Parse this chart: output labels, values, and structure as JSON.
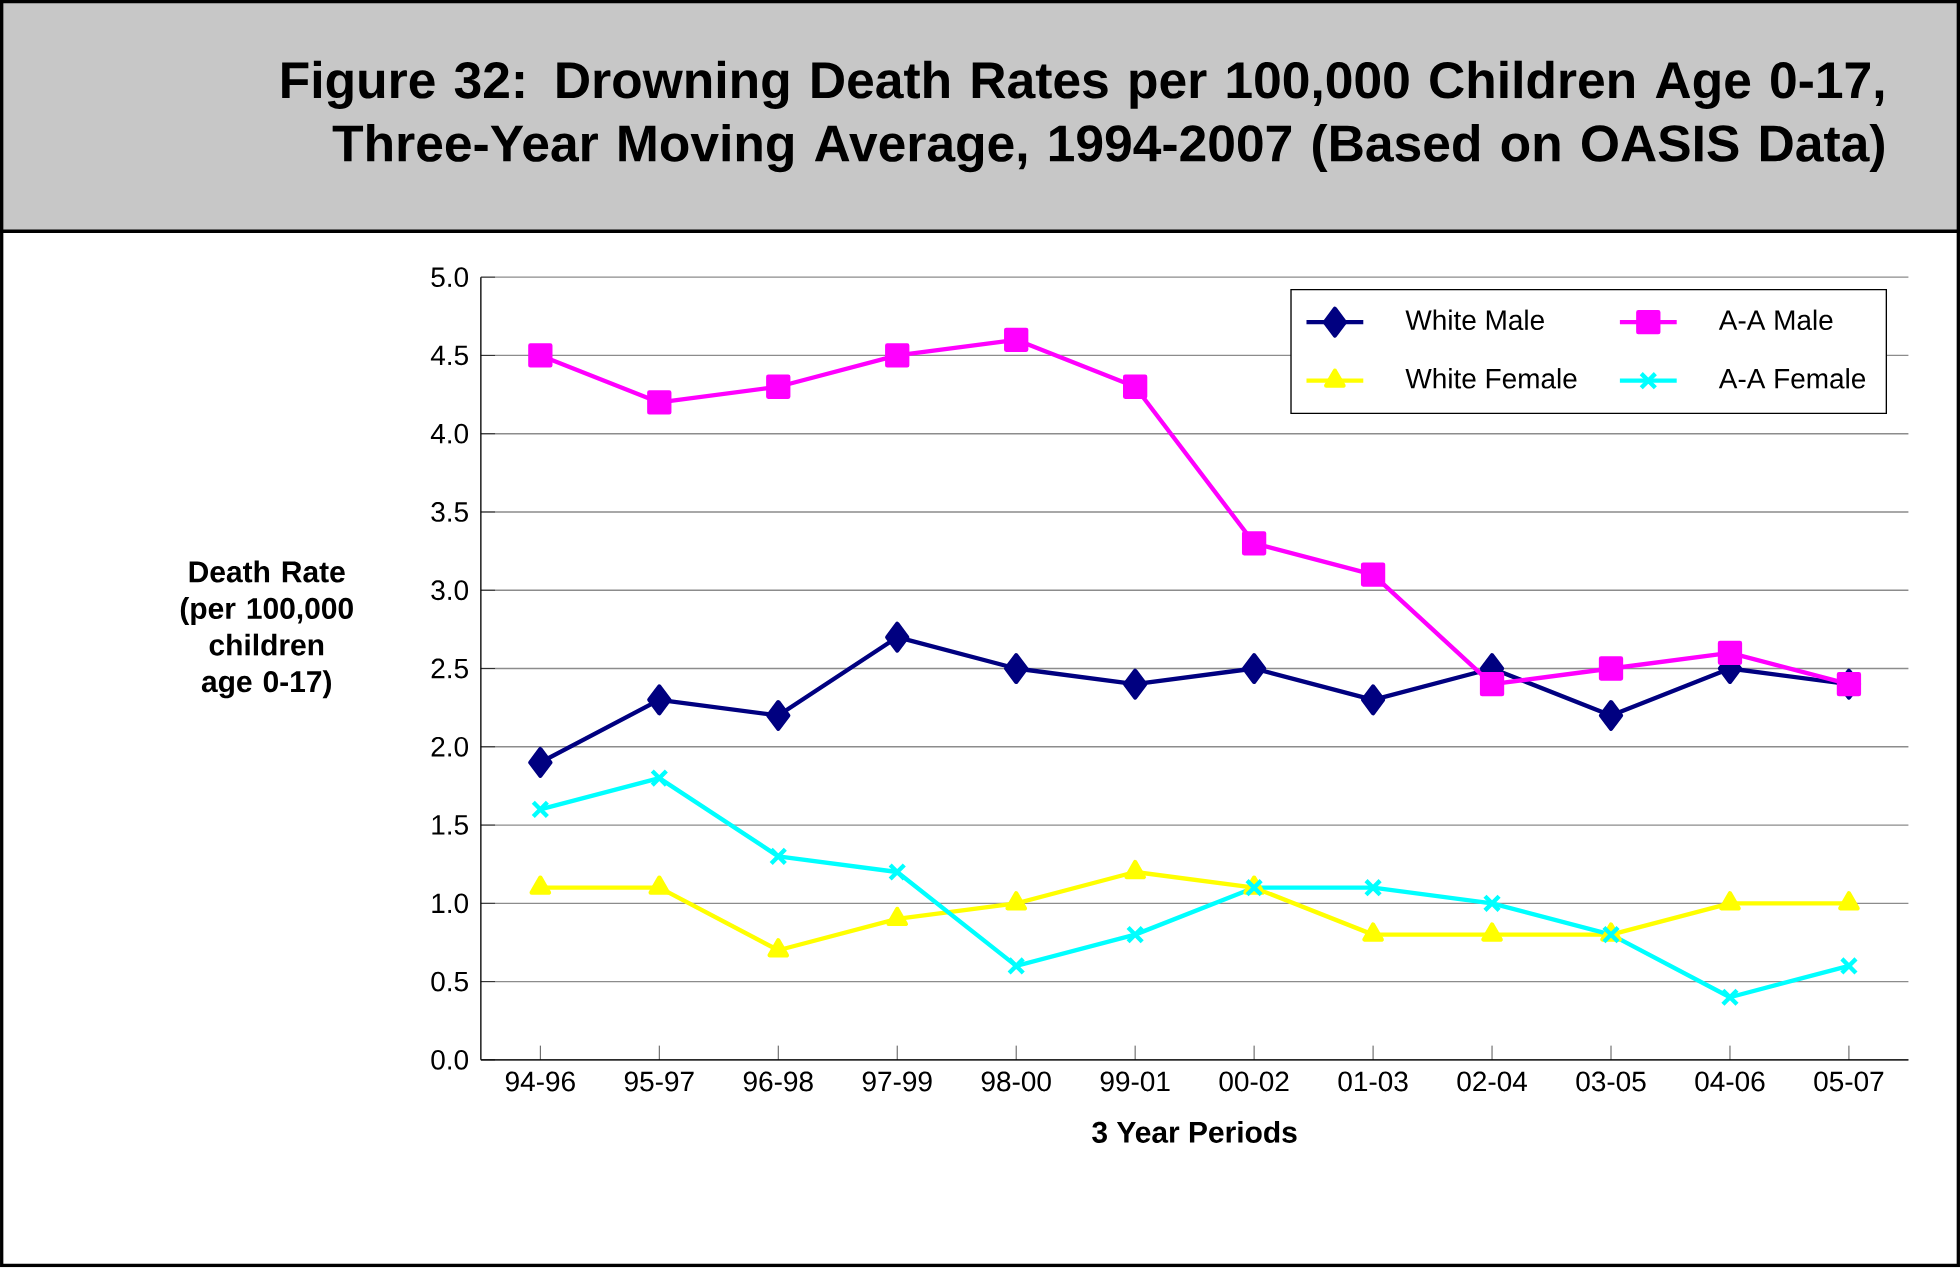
{
  "chart_data": {
    "type": "line",
    "title": "Figure 32: Drowning Death Rates per 100,000 Children Age 0-17, Three-Year Moving Average, 1994-2007 (Based on OASIS Data)",
    "xlabel": "3 Year Periods",
    "ylabel": "Death Rate (per 100,000 children age 0-17)",
    "categories": [
      "94-96",
      "95-97",
      "96-98",
      "97-99",
      "98-00",
      "99-01",
      "00-02",
      "01-03",
      "02-04",
      "03-05",
      "04-06",
      "05-07"
    ],
    "series": [
      {
        "name": "White Male",
        "color": "#000080",
        "marker": "diamond",
        "values": [
          1.9,
          2.3,
          2.2,
          2.7,
          2.5,
          2.4,
          2.5,
          2.3,
          2.5,
          2.2,
          2.5,
          2.4
        ]
      },
      {
        "name": "A-A Male",
        "color": "#ff00ff",
        "marker": "square",
        "values": [
          4.5,
          4.2,
          4.3,
          4.5,
          4.6,
          4.3,
          3.3,
          3.1,
          2.4,
          2.5,
          2.6,
          2.4
        ]
      },
      {
        "name": "White Female",
        "color": "#ffff00",
        "marker": "triangle",
        "values": [
          1.1,
          1.1,
          0.7,
          0.9,
          1.0,
          1.2,
          1.1,
          0.8,
          0.8,
          0.8,
          1.0,
          1.0
        ]
      },
      {
        "name": "A-A Female",
        "color": "#00ffff",
        "marker": "cross",
        "values": [
          1.6,
          1.8,
          1.3,
          1.2,
          0.6,
          0.8,
          1.1,
          1.1,
          1.0,
          0.8,
          0.4,
          0.6
        ]
      }
    ],
    "ylim": [
      0,
      5
    ],
    "yticks": [
      {
        "value": 0,
        "label": "0.0"
      },
      {
        "value": 0.5,
        "label": "0.5"
      },
      {
        "value": 1,
        "label": "1.0"
      },
      {
        "value": 1.5,
        "label": "1.5"
      },
      {
        "value": 2,
        "label": "2.0"
      },
      {
        "value": 2.5,
        "label": "2.5"
      },
      {
        "value": 3,
        "label": "3.0"
      },
      {
        "value": 3.5,
        "label": "3.5"
      },
      {
        "value": 4,
        "label": "4.0"
      },
      {
        "value": 4.5,
        "label": "4.5"
      },
      {
        "value": 5,
        "label": "5.0"
      }
    ],
    "grid": "y",
    "legend": "top right",
    "line_style": "solid"
  }
}
